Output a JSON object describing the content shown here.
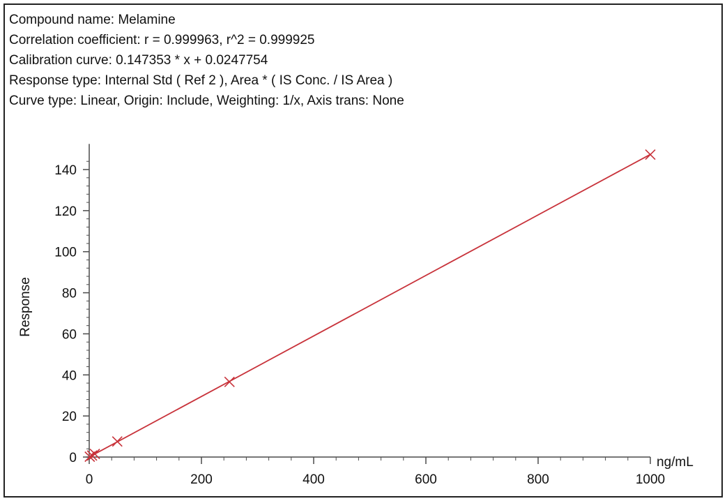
{
  "header_lines": [
    "Compound name: Melamine",
    "Correlation coefficient: r = 0.999963, r^2 = 0.999925",
    "Calibration curve: 0.147353 * x + 0.0247754",
    "Response type: Internal Std ( Ref 2 ), Area * ( IS Conc. / IS Area )",
    "Curve type: Linear, Origin: Include, Weighting: 1/x, Axis trans: None"
  ],
  "colors": {
    "series": "#c8323a",
    "axis": "#4a4a4a",
    "frame": "#222222"
  },
  "chart_data": {
    "type": "scatter",
    "title": "",
    "xlabel": "ng/mL",
    "ylabel": "Response",
    "xlim": [
      0,
      1000
    ],
    "ylim": [
      0,
      145
    ],
    "x_ticks": [
      0,
      200,
      400,
      600,
      800,
      1000
    ],
    "y_ticks": [
      0,
      20,
      40,
      60,
      80,
      100,
      120,
      140
    ],
    "x_tick_labels": [
      "0",
      "200",
      "400",
      "600",
      "800",
      "1000"
    ],
    "y_tick_labels": [
      "0",
      "20",
      "40",
      "60",
      "80",
      "100",
      "120",
      "140"
    ],
    "grid": false,
    "points": [
      {
        "x": 1,
        "y": 0.17
      },
      {
        "x": 5,
        "y": 0.76
      },
      {
        "x": 10,
        "y": 1.5
      },
      {
        "x": 50,
        "y": 7.6
      },
      {
        "x": 250,
        "y": 36.6
      },
      {
        "x": 1000,
        "y": 147.3
      }
    ],
    "fit_line": {
      "slope": 0.147353,
      "intercept": 0.0247754,
      "x_range": [
        0,
        1000
      ]
    }
  }
}
